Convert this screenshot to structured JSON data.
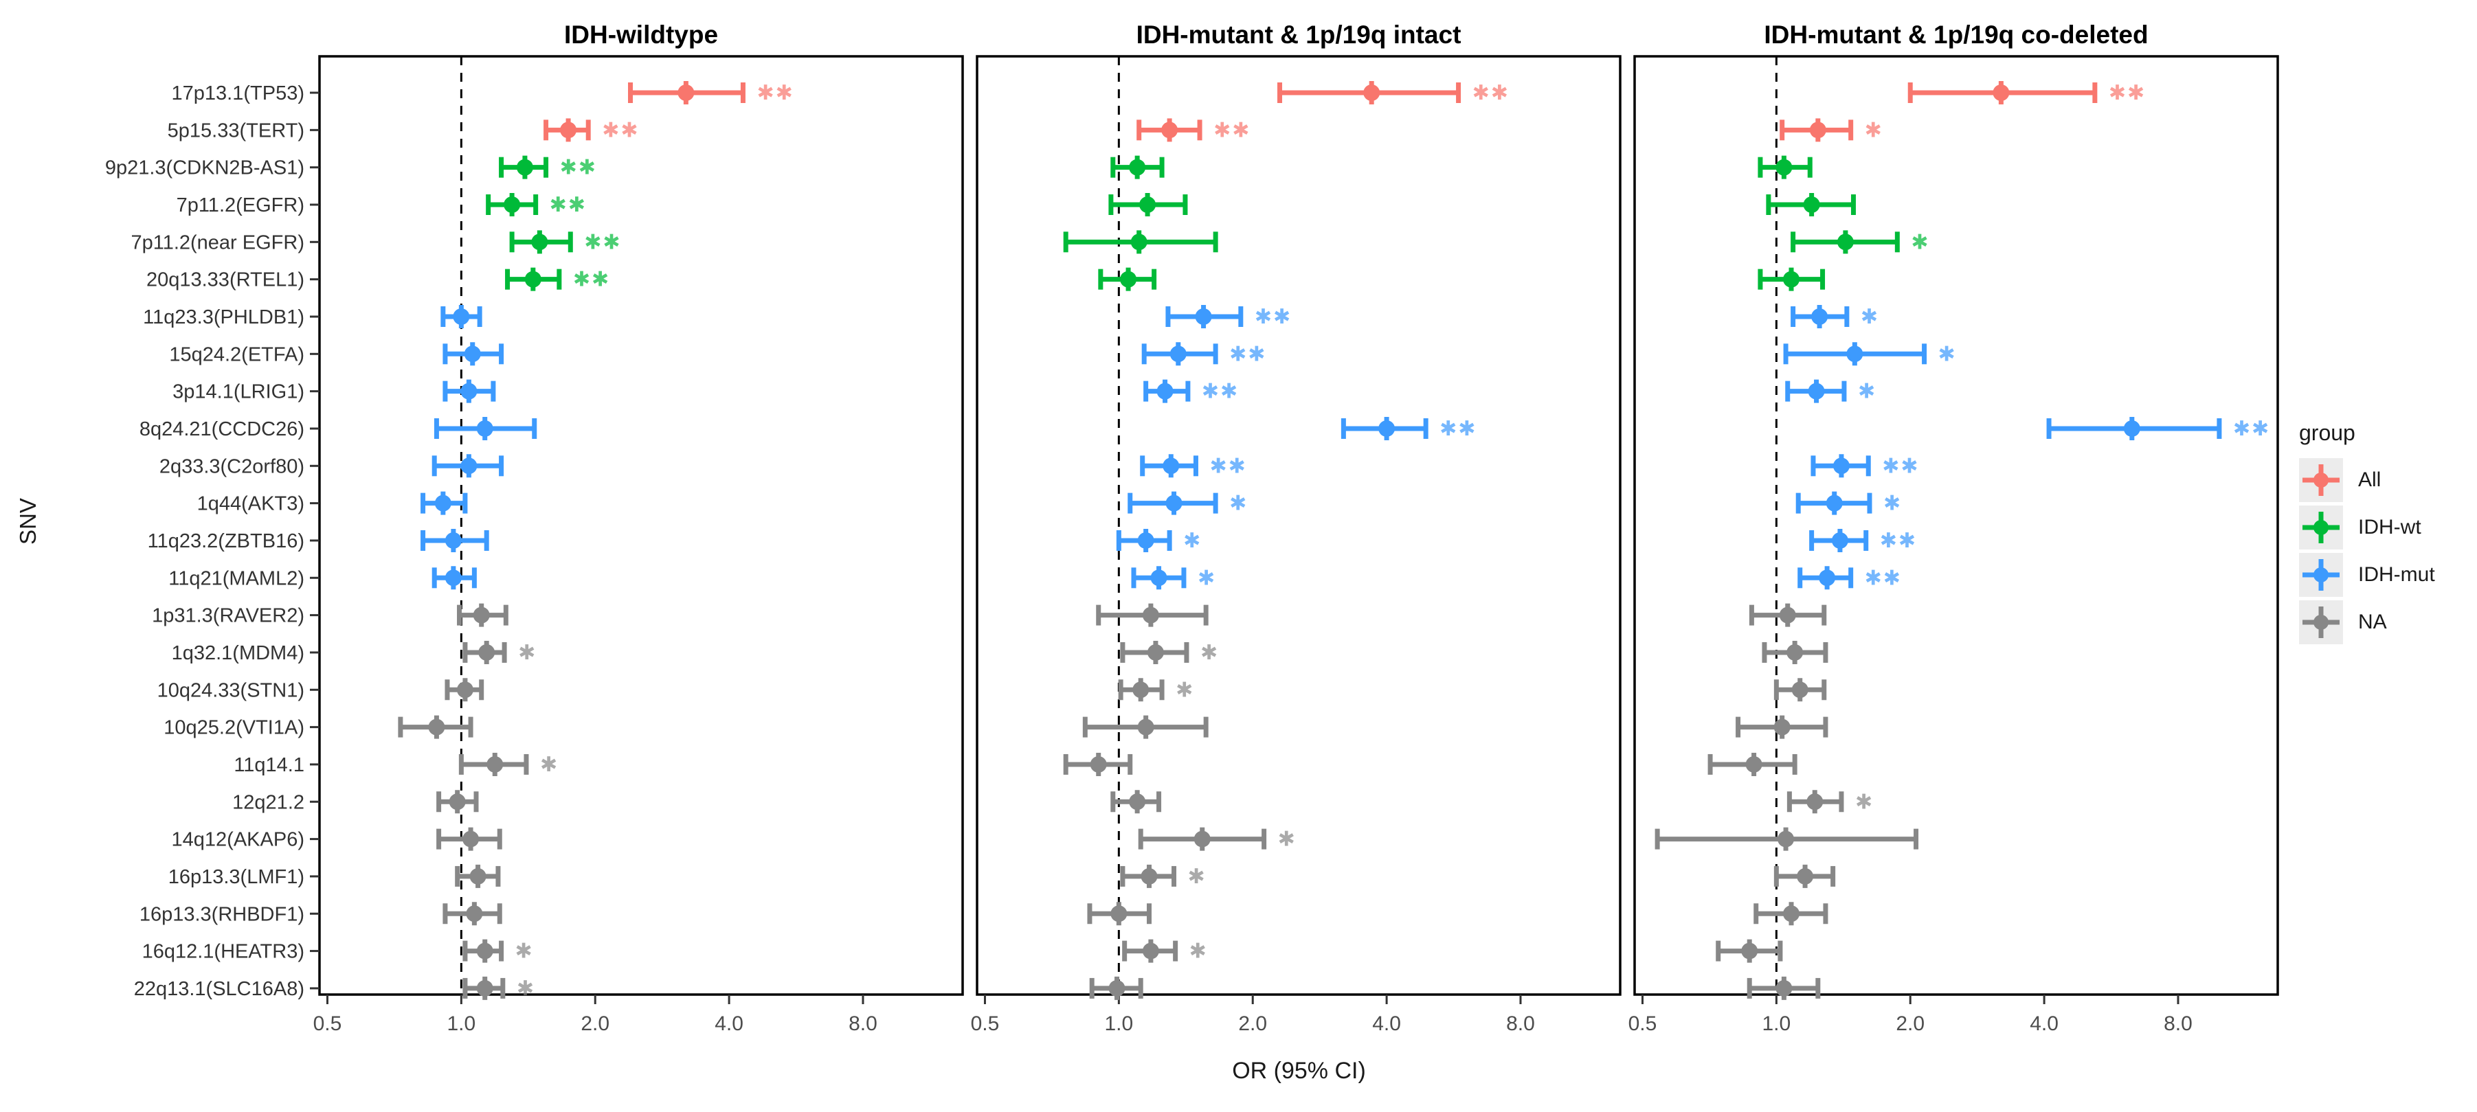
{
  "chart_data": {
    "type": "scatter",
    "subtype": "forest-plot",
    "title": "",
    "xlabel": "OR (95% CI)",
    "ylabel": "SNV",
    "x_scale": "log2",
    "x_ticks": [
      "0.5",
      "1.0",
      "2.0",
      "4.0",
      "8.0"
    ],
    "x_tick_values": [
      0.5,
      1.0,
      2.0,
      4.0,
      8.0
    ],
    "x_range": [
      0.48,
      13.4
    ],
    "reference_line": 1.0,
    "grid": false,
    "panels": [
      "IDH-wildtype",
      "IDH-mutant & 1p/19q intact",
      "IDH-mutant & 1p/19q co-deleted"
    ],
    "groups": {
      "All": "#F8766D",
      "IDH-wt": "#00BA38",
      "IDH-mut": "#3D9AFD",
      "NA": "#878787"
    },
    "legend": {
      "title": "group",
      "position": "right",
      "entries": [
        {
          "label": "All",
          "color": "#F8766D"
        },
        {
          "label": "IDH-wt",
          "color": "#00BA38"
        },
        {
          "label": "IDH-mut",
          "color": "#3D9AFD"
        },
        {
          "label": "NA",
          "color": "#878787"
        }
      ]
    },
    "rows": [
      {
        "label": "17p13.1(TP53)",
        "group": "All",
        "p": [
          [
            3.2,
            2.4,
            4.3,
            "**"
          ],
          [
            3.7,
            2.3,
            5.8,
            "**"
          ],
          [
            3.2,
            2.0,
            5.2,
            "**"
          ]
        ]
      },
      {
        "label": "5p15.33(TERT)",
        "group": "All",
        "p": [
          [
            1.74,
            1.55,
            1.93,
            "**"
          ],
          [
            1.3,
            1.11,
            1.52,
            "**"
          ],
          [
            1.24,
            1.03,
            1.47,
            "*"
          ]
        ]
      },
      {
        "label": "9p21.3(CDKN2B-AS1)",
        "group": "IDH-wt",
        "p": [
          [
            1.39,
            1.23,
            1.55,
            "**"
          ],
          [
            1.1,
            0.97,
            1.25,
            ""
          ],
          [
            1.04,
            0.92,
            1.19,
            ""
          ]
        ]
      },
      {
        "label": "7p11.2(EGFR)",
        "group": "IDH-wt",
        "p": [
          [
            1.3,
            1.15,
            1.47,
            "**"
          ],
          [
            1.16,
            0.96,
            1.41,
            ""
          ],
          [
            1.2,
            0.96,
            1.49,
            ""
          ]
        ]
      },
      {
        "label": "7p11.2(near EGFR)",
        "group": "IDH-wt",
        "p": [
          [
            1.5,
            1.3,
            1.76,
            "**"
          ],
          [
            1.11,
            0.76,
            1.65,
            ""
          ],
          [
            1.43,
            1.09,
            1.87,
            "*"
          ]
        ]
      },
      {
        "label": "20q13.33(RTEL1)",
        "group": "IDH-wt",
        "p": [
          [
            1.45,
            1.27,
            1.66,
            "**"
          ],
          [
            1.05,
            0.91,
            1.2,
            ""
          ],
          [
            1.08,
            0.92,
            1.27,
            ""
          ]
        ]
      },
      {
        "label": "11q23.3(PHLDB1)",
        "group": "IDH-mut",
        "p": [
          [
            1.0,
            0.91,
            1.1,
            ""
          ],
          [
            1.55,
            1.29,
            1.88,
            "**"
          ],
          [
            1.25,
            1.09,
            1.44,
            "*"
          ]
        ]
      },
      {
        "label": "15q24.2(ETFA)",
        "group": "IDH-mut",
        "p": [
          [
            1.06,
            0.92,
            1.23,
            ""
          ],
          [
            1.36,
            1.14,
            1.65,
            "**"
          ],
          [
            1.5,
            1.05,
            2.15,
            "*"
          ]
        ]
      },
      {
        "label": "3p14.1(LRIG1)",
        "group": "IDH-mut",
        "p": [
          [
            1.04,
            0.92,
            1.18,
            ""
          ],
          [
            1.27,
            1.15,
            1.43,
            "**"
          ],
          [
            1.23,
            1.06,
            1.42,
            "*"
          ]
        ]
      },
      {
        "label": "8q24.21(CCDC26)",
        "group": "IDH-mut",
        "p": [
          [
            1.13,
            0.88,
            1.46,
            ""
          ],
          [
            4.0,
            3.2,
            4.9,
            "**"
          ],
          [
            6.3,
            4.1,
            9.9,
            "**"
          ]
        ]
      },
      {
        "label": "2q33.3(C2orf80)",
        "group": "IDH-mut",
        "p": [
          [
            1.04,
            0.87,
            1.23,
            ""
          ],
          [
            1.31,
            1.13,
            1.49,
            "**"
          ],
          [
            1.4,
            1.21,
            1.61,
            "**"
          ]
        ]
      },
      {
        "label": "1q44(AKT3)",
        "group": "IDH-mut",
        "p": [
          [
            0.91,
            0.82,
            1.02,
            ""
          ],
          [
            1.33,
            1.06,
            1.65,
            "*"
          ],
          [
            1.35,
            1.12,
            1.62,
            "*"
          ]
        ]
      },
      {
        "label": "11q23.2(ZBTB16)",
        "group": "IDH-mut",
        "p": [
          [
            0.96,
            0.82,
            1.14,
            ""
          ],
          [
            1.15,
            1.0,
            1.3,
            "*"
          ],
          [
            1.39,
            1.2,
            1.59,
            "**"
          ]
        ]
      },
      {
        "label": "11q21(MAML2)",
        "group": "IDH-mut",
        "p": [
          [
            0.96,
            0.87,
            1.07,
            ""
          ],
          [
            1.23,
            1.08,
            1.4,
            "*"
          ],
          [
            1.3,
            1.13,
            1.47,
            "**"
          ]
        ]
      },
      {
        "label": "1p31.3(RAVER2)",
        "group": "NA",
        "p": [
          [
            1.11,
            0.99,
            1.26,
            ""
          ],
          [
            1.18,
            0.9,
            1.57,
            ""
          ],
          [
            1.06,
            0.88,
            1.28,
            ""
          ]
        ]
      },
      {
        "label": "1q32.1(MDM4)",
        "group": "NA",
        "p": [
          [
            1.14,
            1.02,
            1.25,
            "*"
          ],
          [
            1.21,
            1.02,
            1.42,
            "*"
          ],
          [
            1.1,
            0.94,
            1.29,
            ""
          ]
        ]
      },
      {
        "label": "10q24.33(STN1)",
        "group": "NA",
        "p": [
          [
            1.02,
            0.93,
            1.11,
            ""
          ],
          [
            1.12,
            1.01,
            1.25,
            "*"
          ],
          [
            1.13,
            1.0,
            1.28,
            ""
          ]
        ]
      },
      {
        "label": "10q25.2(VTI1A)",
        "group": "NA",
        "p": [
          [
            0.88,
            0.73,
            1.05,
            ""
          ],
          [
            1.15,
            0.84,
            1.57,
            ""
          ],
          [
            1.03,
            0.82,
            1.29,
            ""
          ]
        ]
      },
      {
        "label": "11q14.1",
        "group": "NA",
        "p": [
          [
            1.19,
            1.0,
            1.4,
            "*"
          ],
          [
            0.9,
            0.76,
            1.06,
            ""
          ],
          [
            0.89,
            0.71,
            1.1,
            ""
          ]
        ]
      },
      {
        "label": "12q21.2",
        "group": "NA",
        "p": [
          [
            0.98,
            0.89,
            1.08,
            ""
          ],
          [
            1.1,
            0.97,
            1.23,
            ""
          ],
          [
            1.22,
            1.07,
            1.4,
            "*"
          ]
        ]
      },
      {
        "label": "14q12(AKAP6)",
        "group": "NA",
        "p": [
          [
            1.05,
            0.89,
            1.22,
            ""
          ],
          [
            1.54,
            1.12,
            2.12,
            "*"
          ],
          [
            1.05,
            0.54,
            2.06,
            ""
          ]
        ]
      },
      {
        "label": "16p13.3(LMF1)",
        "group": "NA",
        "p": [
          [
            1.09,
            0.98,
            1.21,
            ""
          ],
          [
            1.17,
            1.02,
            1.33,
            "*"
          ],
          [
            1.16,
            1.0,
            1.34,
            ""
          ]
        ]
      },
      {
        "label": "16p13.3(RHBDF1)",
        "group": "NA",
        "p": [
          [
            1.07,
            0.92,
            1.22,
            ""
          ],
          [
            1.0,
            0.86,
            1.17,
            ""
          ],
          [
            1.08,
            0.9,
            1.29,
            ""
          ]
        ]
      },
      {
        "label": "16q12.1(HEATR3)",
        "group": "NA",
        "p": [
          [
            1.13,
            1.02,
            1.23,
            "*"
          ],
          [
            1.18,
            1.03,
            1.34,
            "*"
          ],
          [
            0.87,
            0.74,
            1.02,
            ""
          ]
        ]
      },
      {
        "label": "22q13.1(SLC16A8)",
        "group": "NA",
        "p": [
          [
            1.13,
            1.02,
            1.24,
            "*"
          ],
          [
            0.99,
            0.87,
            1.12,
            ""
          ],
          [
            1.04,
            0.87,
            1.24,
            ""
          ]
        ]
      }
    ],
    "significance_note": {
      "single": "*",
      "double": "**"
    }
  }
}
